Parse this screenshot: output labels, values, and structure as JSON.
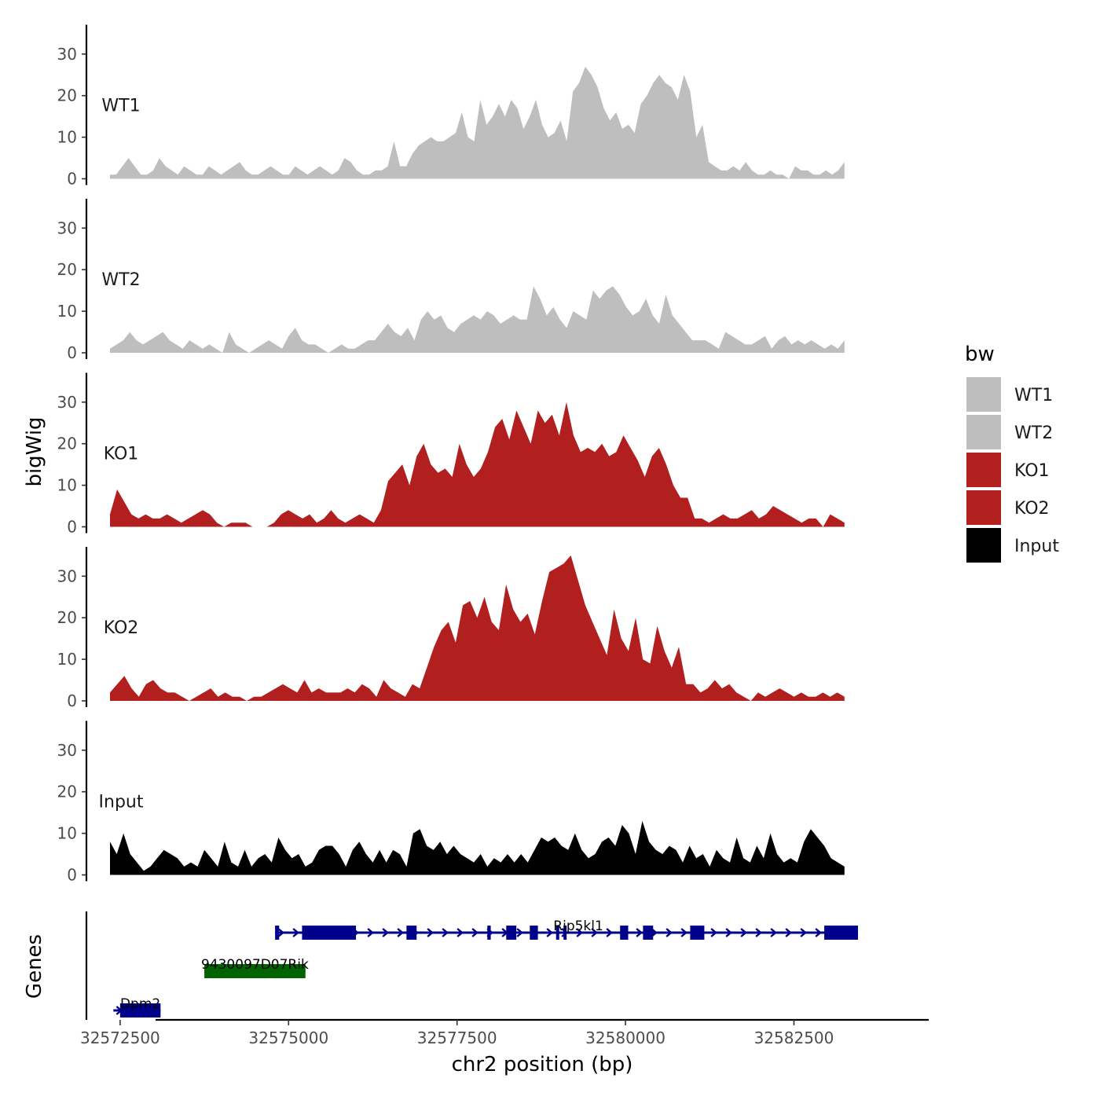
{
  "chart_data": {
    "type": "area",
    "y_axis_title": "bigWig",
    "x_axis_title": "chr2 position (bp)",
    "genes_axis_title": "Genes",
    "x_range": [
      32572000,
      32584500
    ],
    "x_ticks": [
      {
        "value": 32572500,
        "label": "32572500"
      },
      {
        "value": 32575000,
        "label": "32575000"
      },
      {
        "value": 32577500,
        "label": "32577500"
      },
      {
        "value": 32580000,
        "label": "32580000"
      },
      {
        "value": 32582500,
        "label": "32582500"
      }
    ],
    "y_range": [
      0,
      37
    ],
    "y_ticks": [
      {
        "value": 0,
        "label": "0"
      },
      {
        "value": 10,
        "label": "10"
      },
      {
        "value": 20,
        "label": "20"
      },
      {
        "value": 30,
        "label": "30"
      }
    ],
    "signal_x_range": [
      32572350,
      32583250
    ],
    "tracks": [
      {
        "name": "WT1",
        "color": "#bebebe",
        "values": [
          1,
          1,
          3,
          5,
          3,
          1,
          1,
          2,
          5,
          3,
          2,
          1,
          3,
          2,
          1,
          1,
          3,
          2,
          1,
          2,
          3,
          4,
          2,
          1,
          1,
          2,
          3,
          2,
          1,
          1,
          3,
          2,
          1,
          2,
          3,
          2,
          1,
          2,
          5,
          4,
          2,
          1,
          1,
          2,
          2,
          3,
          9,
          3,
          3,
          6,
          8,
          9,
          10,
          9,
          9,
          10,
          11,
          16,
          10,
          9,
          19,
          13,
          15,
          18,
          15,
          19,
          17,
          12,
          15,
          19,
          13,
          10,
          11,
          14,
          9,
          21,
          23,
          27,
          25,
          22,
          17,
          14,
          16,
          12,
          13,
          11,
          18,
          20,
          23,
          25,
          23,
          22,
          19,
          25,
          21,
          10,
          13,
          4,
          3,
          2,
          2,
          3,
          2,
          4,
          2,
          1,
          1,
          2,
          1,
          1,
          0,
          3,
          2,
          2,
          1,
          1,
          2,
          1,
          2,
          4
        ]
      },
      {
        "name": "WT2",
        "color": "#bebebe",
        "values": [
          1,
          2,
          3,
          5,
          3,
          2,
          3,
          4,
          5,
          3,
          2,
          1,
          3,
          2,
          1,
          2,
          1,
          0,
          5,
          2,
          1,
          0,
          1,
          2,
          3,
          2,
          1,
          4,
          6,
          3,
          2,
          2,
          1,
          0,
          1,
          2,
          1,
          1,
          2,
          3,
          3,
          5,
          7,
          5,
          4,
          6,
          3,
          8,
          10,
          8,
          9,
          6,
          5,
          7,
          8,
          9,
          8,
          10,
          9,
          7,
          8,
          9,
          8,
          8,
          16,
          13,
          9,
          11,
          8,
          6,
          10,
          9,
          8,
          15,
          13,
          15,
          16,
          14,
          11,
          9,
          10,
          13,
          9,
          7,
          14,
          9,
          7,
          5,
          3,
          3,
          3,
          2,
          1,
          5,
          4,
          3,
          2,
          2,
          3,
          4,
          1,
          3,
          4,
          2,
          3,
          2,
          3,
          2,
          1,
          2,
          1,
          3
        ]
      },
      {
        "name": "KO1",
        "color": "#b21f1f",
        "values": [
          3,
          9,
          6,
          3,
          2,
          3,
          2,
          2,
          3,
          2,
          1,
          2,
          3,
          4,
          3,
          1,
          0,
          1,
          1,
          1,
          0,
          0,
          0,
          1,
          3,
          4,
          3,
          2,
          3,
          1,
          2,
          4,
          2,
          1,
          2,
          3,
          2,
          1,
          4,
          11,
          13,
          15,
          10,
          17,
          20,
          15,
          13,
          14,
          12,
          20,
          15,
          12,
          14,
          18,
          24,
          26,
          21,
          28,
          24,
          20,
          28,
          25,
          27,
          22,
          30,
          22,
          18,
          19,
          18,
          20,
          17,
          18,
          22,
          19,
          16,
          12,
          17,
          19,
          15,
          10,
          7,
          7,
          2,
          2,
          1,
          2,
          3,
          2,
          2,
          3,
          4,
          2,
          3,
          5,
          4,
          3,
          2,
          1,
          2,
          2,
          0,
          3,
          2,
          1
        ]
      },
      {
        "name": "KO2",
        "color": "#b21f1f",
        "values": [
          2,
          4,
          6,
          3,
          1,
          4,
          5,
          3,
          2,
          2,
          1,
          0,
          1,
          2,
          3,
          1,
          2,
          1,
          1,
          0,
          1,
          1,
          2,
          3,
          4,
          3,
          2,
          5,
          2,
          3,
          2,
          2,
          2,
          3,
          2,
          4,
          3,
          1,
          5,
          3,
          2,
          1,
          4,
          3,
          8,
          13,
          17,
          19,
          14,
          23,
          24,
          20,
          25,
          19,
          17,
          28,
          22,
          19,
          21,
          16,
          24,
          31,
          32,
          33,
          35,
          29,
          23,
          19,
          15,
          11,
          22,
          15,
          12,
          20,
          10,
          9,
          18,
          12,
          8,
          13,
          4,
          4,
          2,
          3,
          5,
          3,
          4,
          2,
          1,
          0,
          2,
          1,
          2,
          3,
          2,
          1,
          2,
          1,
          1,
          2,
          1,
          2,
          1
        ]
      },
      {
        "name": "Input",
        "color": "#000000",
        "values": [
          8,
          5,
          10,
          5,
          3,
          1,
          2,
          4,
          6,
          5,
          4,
          2,
          3,
          2,
          6,
          4,
          2,
          8,
          3,
          2,
          6,
          2,
          4,
          5,
          3,
          9,
          6,
          4,
          5,
          2,
          3,
          6,
          7,
          7,
          5,
          2,
          6,
          8,
          5,
          3,
          6,
          3,
          6,
          5,
          2,
          10,
          11,
          7,
          6,
          8,
          5,
          7,
          5,
          4,
          3,
          5,
          2,
          4,
          3,
          5,
          3,
          5,
          3,
          6,
          9,
          8,
          9,
          7,
          6,
          10,
          6,
          4,
          5,
          8,
          9,
          7,
          12,
          10,
          5,
          13,
          8,
          6,
          5,
          7,
          6,
          3,
          7,
          4,
          5,
          2,
          6,
          4,
          3,
          9,
          4,
          3,
          7,
          4,
          10,
          5,
          3,
          4,
          3,
          8,
          11,
          9,
          7,
          4,
          3,
          2
        ]
      }
    ],
    "genes": [
      {
        "name": "Rip5kl1",
        "color": "#00008b",
        "start": 32574800,
        "end": 32583450,
        "strand": "+",
        "row": 0,
        "exons": [
          [
            32574800,
            32574860
          ],
          [
            32575200,
            32576000
          ],
          [
            32576750,
            32576900
          ],
          [
            32577950,
            32578000
          ],
          [
            32578230,
            32578380
          ],
          [
            32578580,
            32578700
          ],
          [
            32578970,
            32579010
          ],
          [
            32579080,
            32579120
          ],
          [
            32579920,
            32580040
          ],
          [
            32580260,
            32580410
          ],
          [
            32580960,
            32581170
          ],
          [
            32582950,
            32583450
          ]
        ]
      },
      {
        "name": "9430097D07Rik",
        "color": "#006400",
        "start": 32573750,
        "end": 32575250,
        "strand": "",
        "row": 1,
        "exons": [
          [
            32573750,
            32575250
          ]
        ]
      },
      {
        "name": "Dpm2",
        "color": "#00008b",
        "start": 32572400,
        "end": 32573100,
        "strand": "+",
        "row": 2,
        "exons": [
          [
            32572500,
            32573100
          ]
        ]
      }
    ],
    "legend": {
      "title": "bw",
      "entries": [
        {
          "label": "WT1",
          "color": "#bebebe"
        },
        {
          "label": "WT2",
          "color": "#bebebe"
        },
        {
          "label": "KO1",
          "color": "#b21f1f"
        },
        {
          "label": "KO2",
          "color": "#b21f1f"
        },
        {
          "label": "Input",
          "color": "#000000"
        }
      ]
    }
  }
}
